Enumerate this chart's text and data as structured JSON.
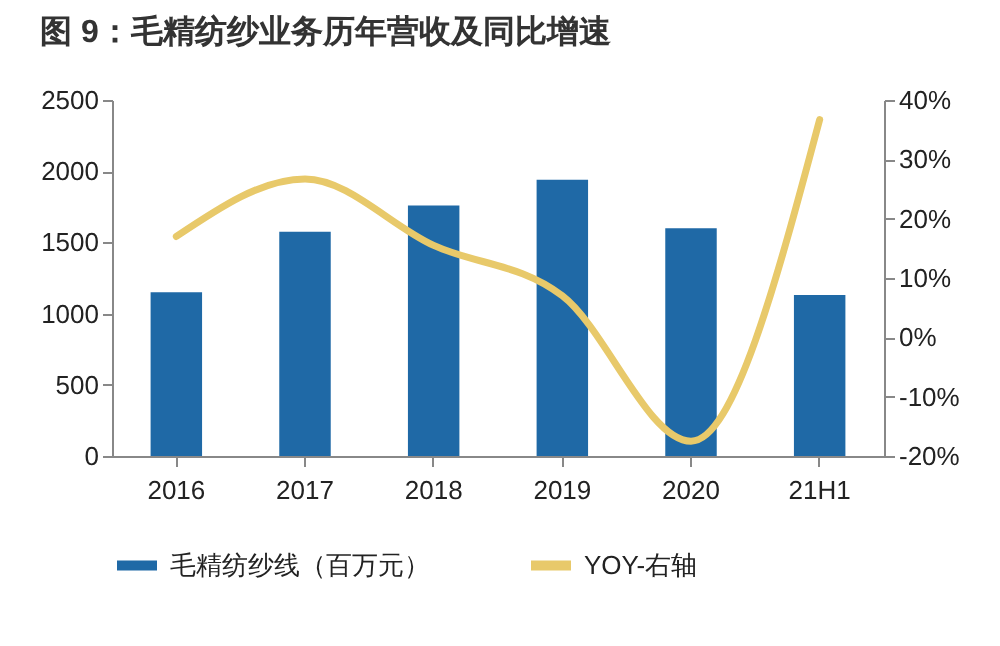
{
  "chart_data": {
    "type": "bar",
    "title": "图 9：毛精纺纱业务历年营收及同比增速",
    "categories": [
      "2016",
      "2017",
      "2018",
      "2019",
      "2020",
      "21H1"
    ],
    "series": [
      {
        "name": "毛精纺纱线（百万元）",
        "color": "#1f69a6",
        "values": [
          1150,
          1575,
          1760,
          1940,
          1600,
          1130
        ]
      },
      {
        "name": "YOY-右轴",
        "type": "line",
        "axis": "y2",
        "color": "#e8c96a",
        "values": [
          17,
          26.7,
          15.5,
          7,
          -17.5,
          36.7
        ]
      }
    ],
    "ylim": [
      0,
      2500
    ],
    "yticks": [
      0,
      500,
      1000,
      1500,
      2000,
      2500
    ],
    "y2lim": [
      -20,
      40
    ],
    "y2ticks": [
      {
        "value": -20,
        "label": "-20%"
      },
      {
        "value": -10,
        "label": "-10%"
      },
      {
        "value": 0,
        "label": "0%"
      },
      {
        "value": 10,
        "label": "10%"
      },
      {
        "value": 20,
        "label": "20%"
      },
      {
        "value": 30,
        "label": "30%"
      },
      {
        "value": 40,
        "label": "40%"
      }
    ],
    "grid": false,
    "legend": "bottom"
  }
}
